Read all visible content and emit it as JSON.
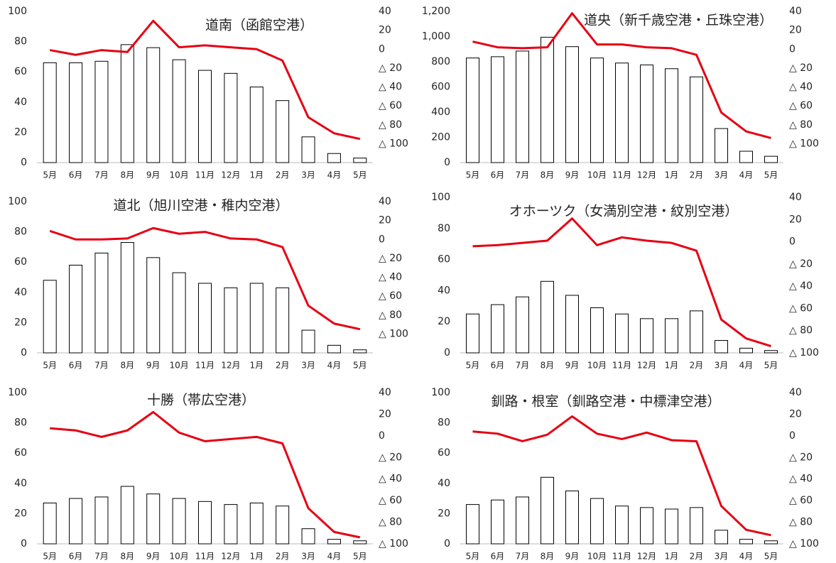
{
  "chart_data": [
    {
      "type": "bar_line",
      "title": "道南（函館空港）",
      "categories": [
        "5月",
        "6月",
        "7月",
        "8月",
        "9月",
        "10月",
        "11月",
        "12月",
        "1月",
        "2月",
        "3月",
        "4月",
        "5月"
      ],
      "series": [
        {
          "type": "bar",
          "color": "#ffffff",
          "values": [
            66,
            66,
            67,
            78,
            76,
            68,
            61,
            59,
            50,
            41,
            17,
            6,
            3
          ]
        },
        {
          "type": "line",
          "axis": "y2",
          "color": "#e60012",
          "values": [
            -1,
            -6,
            -1,
            -3,
            30,
            2,
            4,
            2,
            0,
            -12,
            -72,
            -89,
            -95
          ]
        }
      ],
      "ylim": [
        0,
        100
      ],
      "yticks": [
        0,
        20,
        40,
        60,
        80,
        100
      ],
      "y2lim": [
        -120,
        40
      ],
      "y2ticks": [
        40,
        20,
        0,
        {
          "value": -20,
          "label": "△ 20"
        },
        {
          "value": -40,
          "label": "△ 40"
        },
        {
          "value": -60,
          "label": "△ 60"
        },
        {
          "value": -80,
          "label": "△ 80"
        },
        {
          "value": -100,
          "label": "△ 100"
        }
      ]
    },
    {
      "type": "bar_line",
      "title": "道央（新千歳空港・丘珠空港）",
      "categories": [
        "5月",
        "6月",
        "7月",
        "8月",
        "9月",
        "10月",
        "11月",
        "12月",
        "1月",
        "2月",
        "3月",
        "4月",
        "5月"
      ],
      "series": [
        {
          "type": "bar",
          "color": "#ffffff",
          "values": [
            830,
            840,
            885,
            995,
            920,
            830,
            790,
            775,
            745,
            680,
            270,
            90,
            50
          ]
        },
        {
          "type": "line",
          "axis": "y2",
          "color": "#e60012",
          "values": [
            8,
            2,
            1,
            2,
            38,
            5,
            5,
            2,
            1,
            -6,
            -67,
            -87,
            -94
          ]
        }
      ],
      "ylim": [
        0,
        1200
      ],
      "yticks": [
        0,
        200,
        400,
        600,
        800,
        {
          "value": 1000,
          "label": "1,000"
        },
        {
          "value": 1200,
          "label": "1,200"
        }
      ],
      "y2lim": [
        -120,
        40
      ],
      "y2ticks": [
        40,
        20,
        0,
        {
          "value": -20,
          "label": "△ 20"
        },
        {
          "value": -40,
          "label": "△ 40"
        },
        {
          "value": -60,
          "label": "△ 60"
        },
        {
          "value": -80,
          "label": "△ 80"
        },
        {
          "value": -100,
          "label": "△ 100"
        }
      ]
    },
    {
      "type": "bar_line",
      "title": "道北（旭川空港・稚内空港）",
      "categories": [
        "5月",
        "6月",
        "7月",
        "8月",
        "9月",
        "10月",
        "11月",
        "12月",
        "1月",
        "2月",
        "3月",
        "4月",
        "5月"
      ],
      "series": [
        {
          "type": "bar",
          "color": "#ffffff",
          "values": [
            48,
            58,
            66,
            73,
            63,
            53,
            46,
            43,
            46,
            43,
            15,
            5,
            2
          ]
        },
        {
          "type": "line",
          "axis": "y2",
          "color": "#e60012",
          "values": [
            9,
            0,
            0,
            1,
            12,
            6,
            8,
            1,
            0,
            -8,
            -70,
            -89,
            -95
          ]
        }
      ],
      "ylim": [
        0,
        100
      ],
      "yticks": [
        0,
        20,
        40,
        60,
        80,
        100
      ],
      "y2lim": [
        -120,
        40
      ],
      "y2ticks": [
        40,
        20,
        0,
        {
          "value": -20,
          "label": "△ 20"
        },
        {
          "value": -40,
          "label": "△ 40"
        },
        {
          "value": -60,
          "label": "△ 60"
        },
        {
          "value": -80,
          "label": "△ 80"
        },
        {
          "value": -100,
          "label": "△ 100"
        }
      ]
    },
    {
      "type": "bar_line",
      "title": "オホーツク（女満別空港・紋別空港）",
      "categories": [
        "5月",
        "6月",
        "7月",
        "8月",
        "9月",
        "10月",
        "11月",
        "12月",
        "1月",
        "2月",
        "3月",
        "4月",
        "5月"
      ],
      "series": [
        {
          "type": "bar",
          "color": "#ffffff",
          "values": [
            25,
            31,
            36,
            46,
            37,
            29,
            25,
            22,
            22,
            27,
            8,
            3,
            1.5
          ]
        },
        {
          "type": "line",
          "axis": "y2",
          "color": "#e60012",
          "values": [
            -4,
            -3,
            -1,
            1,
            21,
            -3,
            4,
            1,
            -1,
            -8,
            -70,
            -87,
            -94
          ]
        }
      ],
      "ylim": [
        0,
        100
      ],
      "yticks": [
        0,
        20,
        40,
        60,
        80,
        100
      ],
      "y2lim": [
        -100,
        40
      ],
      "y2ticks": [
        40,
        20,
        0,
        {
          "value": -20,
          "label": "△ 20"
        },
        {
          "value": -40,
          "label": "△ 40"
        },
        {
          "value": -60,
          "label": "△ 60"
        },
        {
          "value": -80,
          "label": "△ 80"
        },
        {
          "value": -100,
          "label": "△ 100"
        }
      ]
    },
    {
      "type": "bar_line",
      "title": "十勝（帯広空港）",
      "categories": [
        "5月",
        "6月",
        "7月",
        "8月",
        "9月",
        "10月",
        "11月",
        "12月",
        "1月",
        "2月",
        "3月",
        "4月",
        "5月"
      ],
      "series": [
        {
          "type": "bar",
          "color": "#ffffff",
          "values": [
            27,
            30,
            31,
            38,
            33,
            30,
            28,
            26,
            27,
            25,
            10,
            3,
            2
          ]
        },
        {
          "type": "line",
          "axis": "y2",
          "color": "#e60012",
          "values": [
            7,
            5,
            -1,
            5,
            22,
            3,
            -5,
            -3,
            -1,
            -7,
            -67,
            -89,
            -94
          ]
        }
      ],
      "ylim": [
        0,
        100
      ],
      "yticks": [
        0,
        20,
        40,
        60,
        80,
        100
      ],
      "y2lim": [
        -100,
        40
      ],
      "y2ticks": [
        40,
        20,
        0,
        {
          "value": -20,
          "label": "△ 20"
        },
        {
          "value": -40,
          "label": "△ 40"
        },
        {
          "value": -60,
          "label": "△ 60"
        },
        {
          "value": -80,
          "label": "△ 80"
        },
        {
          "value": -100,
          "label": "△ 100"
        }
      ]
    },
    {
      "type": "bar_line",
      "title": "釧路・根室（釧路空港・中標津空港）",
      "categories": [
        "5月",
        "6月",
        "7月",
        "8月",
        "9月",
        "10月",
        "11月",
        "12月",
        "1月",
        "2月",
        "3月",
        "4月",
        "5月"
      ],
      "series": [
        {
          "type": "bar",
          "color": "#ffffff",
          "values": [
            26,
            29,
            31,
            44,
            35,
            30,
            25,
            24,
            23,
            24,
            9,
            3,
            2
          ]
        },
        {
          "type": "line",
          "axis": "y2",
          "color": "#e60012",
          "values": [
            4,
            2,
            -5,
            1,
            18,
            2,
            -3,
            3,
            -4,
            -5,
            -65,
            -87,
            -92
          ]
        }
      ],
      "ylim": [
        0,
        100
      ],
      "yticks": [
        0,
        20,
        40,
        60,
        80,
        100
      ],
      "y2lim": [
        -100,
        40
      ],
      "y2ticks": [
        40,
        20,
        0,
        {
          "value": -20,
          "label": "△ 20"
        },
        {
          "value": -40,
          "label": "△ 40"
        },
        {
          "value": -60,
          "label": "△ 60"
        },
        {
          "value": -80,
          "label": "△ 80"
        },
        {
          "value": -100,
          "label": "△ 100"
        }
      ]
    }
  ]
}
